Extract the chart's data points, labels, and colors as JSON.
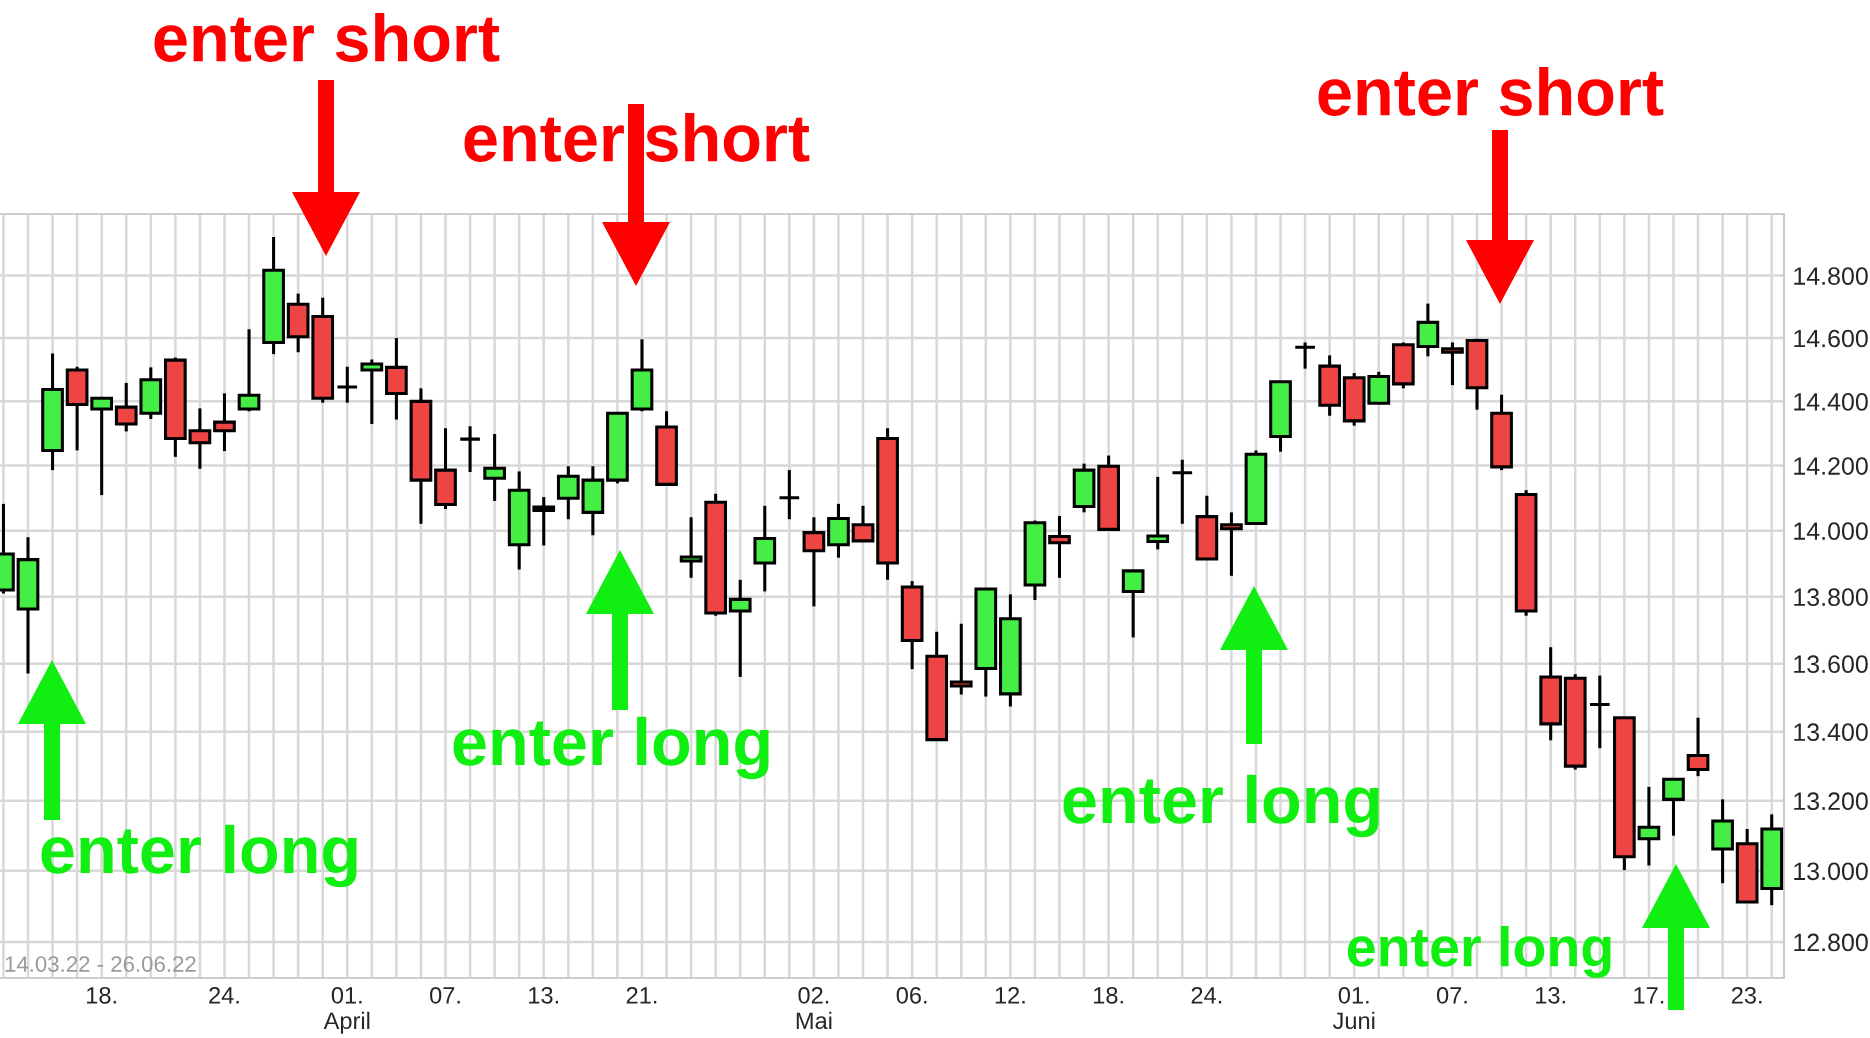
{
  "chart_data": {
    "type": "candlestick",
    "categories": [
      null,
      null,
      null,
      null,
      "18.",
      null,
      null,
      null,
      null,
      "24.",
      null,
      null,
      null,
      null,
      "01.\nApril",
      null,
      null,
      null,
      "07.",
      null,
      null,
      null,
      "13.",
      null,
      null,
      null,
      "21.",
      null,
      null,
      null,
      null,
      null,
      null,
      "02.\nMai",
      null,
      null,
      null,
      "06.",
      null,
      null,
      null,
      "12.",
      null,
      null,
      null,
      "18.",
      null,
      null,
      null,
      "24.",
      null,
      null,
      null,
      null,
      null,
      "01.\nJuni",
      null,
      null,
      null,
      "07.",
      null,
      null,
      null,
      "13.",
      null,
      null,
      null,
      "17.",
      null,
      null,
      null,
      "23.",
      null
    ],
    "ohlc": [
      [
        13820,
        14082,
        13810,
        13929
      ],
      [
        13763,
        13980,
        13571,
        13912
      ],
      [
        14247,
        14551,
        14186,
        14437
      ],
      [
        14499,
        14509,
        14247,
        14390
      ],
      [
        14376,
        14414,
        14109,
        14410
      ],
      [
        14382,
        14458,
        14306,
        14329
      ],
      [
        14363,
        14507,
        14345,
        14468
      ],
      [
        14530,
        14538,
        14227,
        14284
      ],
      [
        14308,
        14378,
        14190,
        14271
      ],
      [
        14335,
        14425,
        14245,
        14308
      ],
      [
        14376,
        14628,
        14369,
        14419
      ],
      [
        14586,
        14925,
        14549,
        14817
      ],
      [
        14708,
        14742,
        14555,
        14604
      ],
      [
        14669,
        14729,
        14396,
        14410
      ],
      [
        14445,
        14509,
        14396,
        14445
      ],
      [
        14499,
        14532,
        14329,
        14518
      ],
      [
        14507,
        14600,
        14343,
        14425
      ],
      [
        14400,
        14441,
        14021,
        14155
      ],
      [
        14186,
        14316,
        14066,
        14080
      ],
      [
        14282,
        14322,
        14180,
        14282
      ],
      [
        14161,
        14298,
        14091,
        14192
      ],
      [
        13957,
        14182,
        13882,
        14124
      ],
      [
        14062,
        14103,
        13955,
        14072
      ],
      [
        14099,
        14198,
        14035,
        14167
      ],
      [
        14056,
        14198,
        13986,
        14155
      ],
      [
        14155,
        14363,
        14145,
        14363
      ],
      [
        14376,
        14596,
        14369,
        14499
      ],
      [
        14320,
        14369,
        14142,
        14142
      ],
      [
        13908,
        14041,
        13857,
        13920
      ],
      [
        14087,
        14113,
        13743,
        13751
      ],
      [
        13757,
        13851,
        13561,
        13792
      ],
      [
        13902,
        14076,
        13816,
        13976
      ],
      [
        14101,
        14186,
        14035,
        14101
      ],
      [
        13994,
        14041,
        13771,
        13939
      ],
      [
        13957,
        14082,
        13918,
        14037
      ],
      [
        14018,
        14076,
        13969,
        13969
      ],
      [
        14284,
        14316,
        13851,
        13902
      ],
      [
        13829,
        13847,
        13584,
        13669
      ],
      [
        13622,
        13695,
        13377,
        13377
      ],
      [
        13546,
        13719,
        13509,
        13534
      ],
      [
        13586,
        13823,
        13503,
        13823
      ],
      [
        13511,
        13807,
        13474,
        13734
      ],
      [
        13835,
        14031,
        13790,
        14024
      ],
      [
        13982,
        14045,
        13857,
        13963
      ],
      [
        14074,
        14206,
        14056,
        14186
      ],
      [
        14198,
        14231,
        14000,
        14004
      ],
      [
        13816,
        13878,
        13678,
        13878
      ],
      [
        13967,
        14165,
        13943,
        13984
      ],
      [
        14178,
        14218,
        14021,
        14178
      ],
      [
        14043,
        14107,
        13914,
        13914
      ],
      [
        14018,
        14056,
        13863,
        14006
      ],
      [
        14022,
        14247,
        14022,
        14235
      ],
      [
        14290,
        14462,
        14243,
        14462
      ],
      [
        14571,
        14586,
        14503,
        14571
      ],
      [
        14511,
        14545,
        14355,
        14388
      ],
      [
        14474,
        14489,
        14324,
        14339
      ],
      [
        14394,
        14493,
        14394,
        14478
      ],
      [
        14579,
        14586,
        14441,
        14455
      ],
      [
        14573,
        14710,
        14542,
        14650
      ],
      [
        14566,
        14586,
        14451,
        14555
      ],
      [
        14592,
        14598,
        14374,
        14443
      ],
      [
        14363,
        14421,
        14186,
        14196
      ],
      [
        14111,
        14124,
        13743,
        13757
      ],
      [
        13561,
        13649,
        13375,
        13423
      ],
      [
        13557,
        13569,
        13290,
        13300
      ],
      [
        13480,
        13565,
        13352,
        13480
      ],
      [
        13441,
        13441,
        13002,
        13040
      ],
      [
        13091,
        13240,
        13015,
        13124
      ],
      [
        13204,
        13262,
        13100,
        13262
      ],
      [
        13331,
        13441,
        13271,
        13290
      ],
      [
        13062,
        13204,
        12965,
        13142
      ],
      [
        13077,
        13119,
        12912,
        12912
      ],
      [
        12950,
        13161,
        12903,
        13119
      ]
    ],
    "colors": [
      "#44ee44",
      "#44ee44",
      "#44ee44",
      "#ee4444",
      "#44ee44",
      "#ee4444",
      "#44ee44",
      "#ee4444",
      "#ee4444",
      "#ee4444",
      "#44ee44",
      "#44ee44",
      "#ee4444",
      "#ee4444",
      "#000000",
      "#44ee44",
      "#ee4444",
      "#ee4444",
      "#ee4444",
      "#000000",
      "#44ee44",
      "#44ee44",
      "#44ee44",
      "#44ee44",
      "#44ee44",
      "#44ee44",
      "#44ee44",
      "#ee4444",
      "#44ee44",
      "#ee4444",
      "#44ee44",
      "#44ee44",
      "#000000",
      "#ee4444",
      "#44ee44",
      "#ee4444",
      "#ee4444",
      "#ee4444",
      "#ee4444",
      "#ee4444",
      "#44ee44",
      "#44ee44",
      "#44ee44",
      "#ee4444",
      "#44ee44",
      "#ee4444",
      "#44ee44",
      "#44ee44",
      "#000000",
      "#ee4444",
      "#ee4444",
      "#44ee44",
      "#44ee44",
      "#000000",
      "#ee4444",
      "#ee4444",
      "#44ee44",
      "#ee4444",
      "#44ee44",
      "#ee4444",
      "#ee4444",
      "#ee4444",
      "#ee4444",
      "#ee4444",
      "#ee4444",
      "#000000",
      "#ee4444",
      "#44ee44",
      "#44ee44",
      "#ee4444",
      "#44ee44",
      "#ee4444",
      "#44ee44"
    ],
    "log": true,
    "ylim": [
      12700,
      15000
    ],
    "yticks": [
      {
        "value": 12800,
        "label": "12.800"
      },
      {
        "value": 13000,
        "label": "13.000"
      },
      {
        "value": 13200,
        "label": "13.200"
      },
      {
        "value": 13400,
        "label": "13.400"
      },
      {
        "value": 13600,
        "label": "13.600"
      },
      {
        "value": 13800,
        "label": "13.800"
      },
      {
        "value": 14000,
        "label": "14.000"
      },
      {
        "value": 14200,
        "label": "14.200"
      },
      {
        "value": 14400,
        "label": "14.400"
      },
      {
        "value": 14600,
        "label": "14.600"
      },
      {
        "value": 14800,
        "label": "14.800"
      }
    ],
    "grid": true,
    "annotations": [
      "enter short",
      "enter short",
      "enter short",
      "enter long",
      "enter long",
      "enter long",
      "enter long",
      "14.03.22 - 26.06.22"
    ]
  }
}
